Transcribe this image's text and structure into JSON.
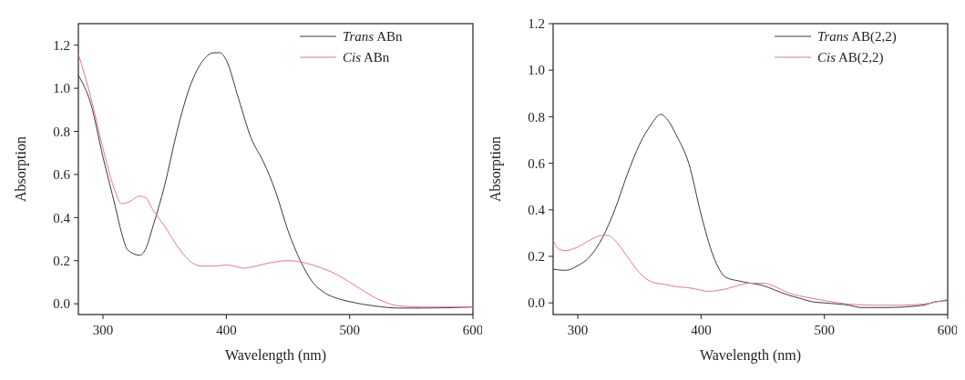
{
  "chart_data": [
    {
      "type": "line",
      "xlabel": "Wavelength (nm)",
      "ylabel": "Absorption",
      "xlim": [
        280,
        600
      ],
      "xticks": [
        300,
        400,
        500,
        600
      ],
      "ylim": [
        -0.05,
        1.3
      ],
      "yticks": [
        {
          "value": 0,
          "label": "0.0"
        },
        {
          "value": 0.2,
          "label": "0.2"
        },
        {
          "value": 0.4,
          "label": "0.4"
        },
        {
          "value": 0.6,
          "label": "0.6"
        },
        {
          "value": 0.8,
          "label": "0.8"
        },
        {
          "value": 1,
          "label": "1.0"
        },
        {
          "value": 1.2,
          "label": "1.2"
        }
      ],
      "legend": "top right",
      "grid": false,
      "line_style": "solid",
      "series": [
        {
          "name": "Trans ABn",
          "color": "#3a3a3a",
          "x": [
            280,
            290,
            300,
            310,
            315,
            320,
            330,
            335,
            340,
            350,
            360,
            370,
            380,
            390,
            395,
            400,
            410,
            420,
            430,
            440,
            450,
            460,
            470,
            480,
            490,
            500,
            520,
            540,
            560,
            600
          ],
          "values": [
            1.06,
            0.93,
            0.68,
            0.45,
            0.33,
            0.25,
            0.225,
            0.26,
            0.35,
            0.55,
            0.8,
            1.0,
            1.12,
            1.165,
            1.165,
            1.13,
            0.95,
            0.77,
            0.66,
            0.52,
            0.34,
            0.2,
            0.1,
            0.05,
            0.025,
            0.01,
            -0.01,
            -0.02,
            -0.02,
            -0.015
          ]
        },
        {
          "name": "Cis ABn",
          "color": "#e8739a",
          "x": [
            280,
            290,
            300,
            310,
            315,
            320,
            330,
            335,
            340,
            350,
            360,
            370,
            380,
            390,
            400,
            410,
            415,
            420,
            440,
            450,
            460,
            470,
            480,
            490,
            500,
            510,
            520,
            530,
            540,
            560,
            600
          ],
          "values": [
            1.16,
            0.96,
            0.72,
            0.52,
            0.465,
            0.47,
            0.5,
            0.49,
            0.44,
            0.36,
            0.27,
            0.2,
            0.175,
            0.175,
            0.18,
            0.17,
            0.165,
            0.17,
            0.195,
            0.2,
            0.195,
            0.18,
            0.16,
            0.135,
            0.1,
            0.065,
            0.03,
            0.005,
            -0.01,
            -0.015,
            -0.015
          ]
        }
      ]
    },
    {
      "type": "line",
      "xlabel": "Wavelength (nm)",
      "ylabel": "Absorption",
      "xlim": [
        280,
        600
      ],
      "xticks": [
        300,
        400,
        500,
        600
      ],
      "ylim": [
        -0.05,
        1.2
      ],
      "yticks": [
        {
          "value": 0,
          "label": "0.0"
        },
        {
          "value": 0.2,
          "label": "0.2"
        },
        {
          "value": 0.4,
          "label": "0.4"
        },
        {
          "value": 0.6,
          "label": "0.6"
        },
        {
          "value": 0.8,
          "label": "0.8"
        },
        {
          "value": 1,
          "label": "1.0"
        },
        {
          "value": 1.2,
          "label": "1.2"
        }
      ],
      "legend": "top right",
      "grid": false,
      "line_style": "solid",
      "series": [
        {
          "name": "Trans AB(2,2)",
          "color": "#3a3a3a",
          "x": [
            280,
            290,
            300,
            310,
            320,
            330,
            340,
            350,
            360,
            367,
            375,
            380,
            390,
            400,
            410,
            420,
            430,
            440,
            450,
            460,
            470,
            480,
            490,
            500,
            520,
            530,
            550,
            580,
            590,
            600
          ],
          "values": [
            0.145,
            0.14,
            0.16,
            0.2,
            0.28,
            0.4,
            0.55,
            0.68,
            0.77,
            0.81,
            0.77,
            0.72,
            0.6,
            0.38,
            0.2,
            0.11,
            0.095,
            0.085,
            0.075,
            0.055,
            0.035,
            0.02,
            0.005,
            0.0,
            -0.01,
            -0.02,
            -0.02,
            -0.01,
            0.005,
            0.01
          ]
        },
        {
          "name": "Cis AB(2,2)",
          "color": "#e8739a",
          "x": [
            280,
            285,
            290,
            300,
            310,
            320,
            325,
            330,
            340,
            350,
            360,
            370,
            380,
            390,
            400,
            405,
            420,
            430,
            440,
            450,
            460,
            470,
            480,
            490,
            500,
            520,
            540,
            560,
            580,
            600
          ],
          "values": [
            0.27,
            0.23,
            0.225,
            0.24,
            0.27,
            0.29,
            0.29,
            0.27,
            0.2,
            0.13,
            0.09,
            0.08,
            0.07,
            0.065,
            0.055,
            0.05,
            0.06,
            0.075,
            0.085,
            0.085,
            0.07,
            0.045,
            0.03,
            0.02,
            0.01,
            -0.005,
            -0.01,
            -0.01,
            -0.005,
            0.015
          ]
        }
      ]
    }
  ]
}
